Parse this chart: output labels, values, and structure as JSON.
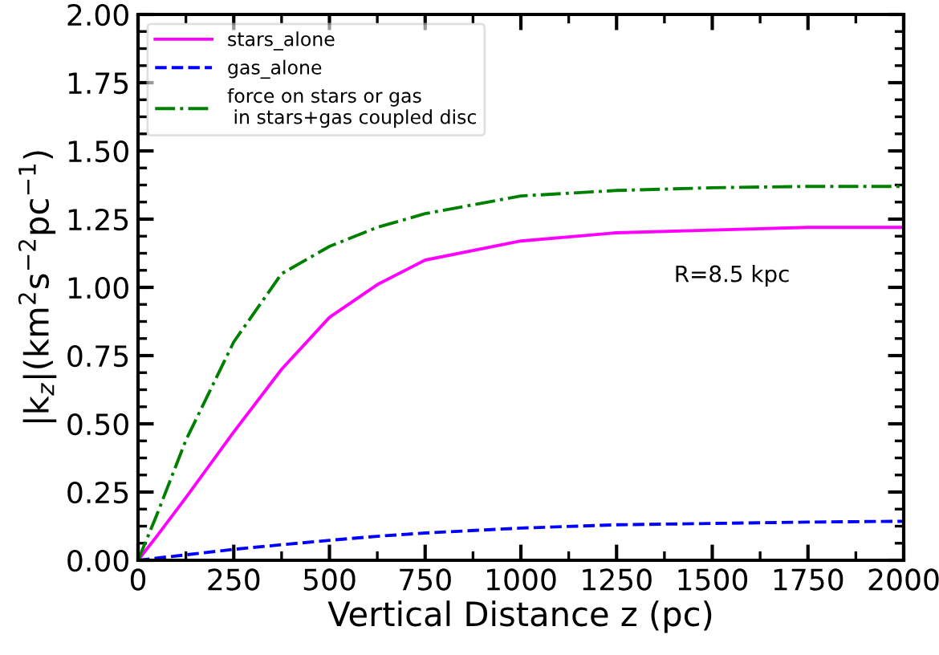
{
  "chart_data": {
    "type": "line",
    "xlabel": "Vertical Distance z (pc)",
    "ylabel": "|k$_{z}$|(km$^{2}$s$^{−2}$pc$^{−1}$)",
    "xlim": [
      0,
      2000
    ],
    "ylim": [
      0,
      2.0
    ],
    "xticks": [
      0,
      250,
      500,
      750,
      1000,
      1250,
      1500,
      1750,
      2000
    ],
    "yticks": [
      {
        "value": 0,
        "label": "0.00"
      },
      {
        "value": 0.25,
        "label": "0.25"
      },
      {
        "value": 0.5,
        "label": "0.50"
      },
      {
        "value": 0.75,
        "label": "0.75"
      },
      {
        "value": 1.0,
        "label": "1.00"
      },
      {
        "value": 1.25,
        "label": "1.25"
      },
      {
        "value": 1.5,
        "label": "1.50"
      },
      {
        "value": 1.75,
        "label": "1.75"
      },
      {
        "value": 2.0,
        "label": "2.00"
      }
    ],
    "grid": false,
    "legend": "top left",
    "marker": "none",
    "annotations": [
      "R=8.5 kpc"
    ],
    "x": [
      0,
      50,
      125,
      250,
      375,
      500,
      625,
      750,
      1000,
      1250,
      1500,
      1750,
      2000
    ],
    "series": [
      {
        "name": "stars_alone",
        "color": "#ff00ff",
        "line_style": "solid",
        "values": [
          0,
          0.09,
          0.23,
          0.47,
          0.7,
          0.89,
          1.01,
          1.1,
          1.17,
          1.2,
          1.21,
          1.22,
          1.22
        ]
      },
      {
        "name": "gas_alone",
        "color": "#0000ff",
        "line_style": "dashed",
        "values": [
          0,
          0.008,
          0.02,
          0.04,
          0.057,
          0.073,
          0.088,
          0.1,
          0.118,
          0.13,
          0.135,
          0.14,
          0.143
        ]
      },
      {
        "name": "force on stars or gas\n in stars+gas coupled disc",
        "color": "#008000",
        "line_style": "dashdot",
        "values": [
          0,
          0.17,
          0.44,
          0.8,
          1.05,
          1.15,
          1.22,
          1.27,
          1.335,
          1.355,
          1.365,
          1.37,
          1.37
        ]
      }
    ]
  }
}
